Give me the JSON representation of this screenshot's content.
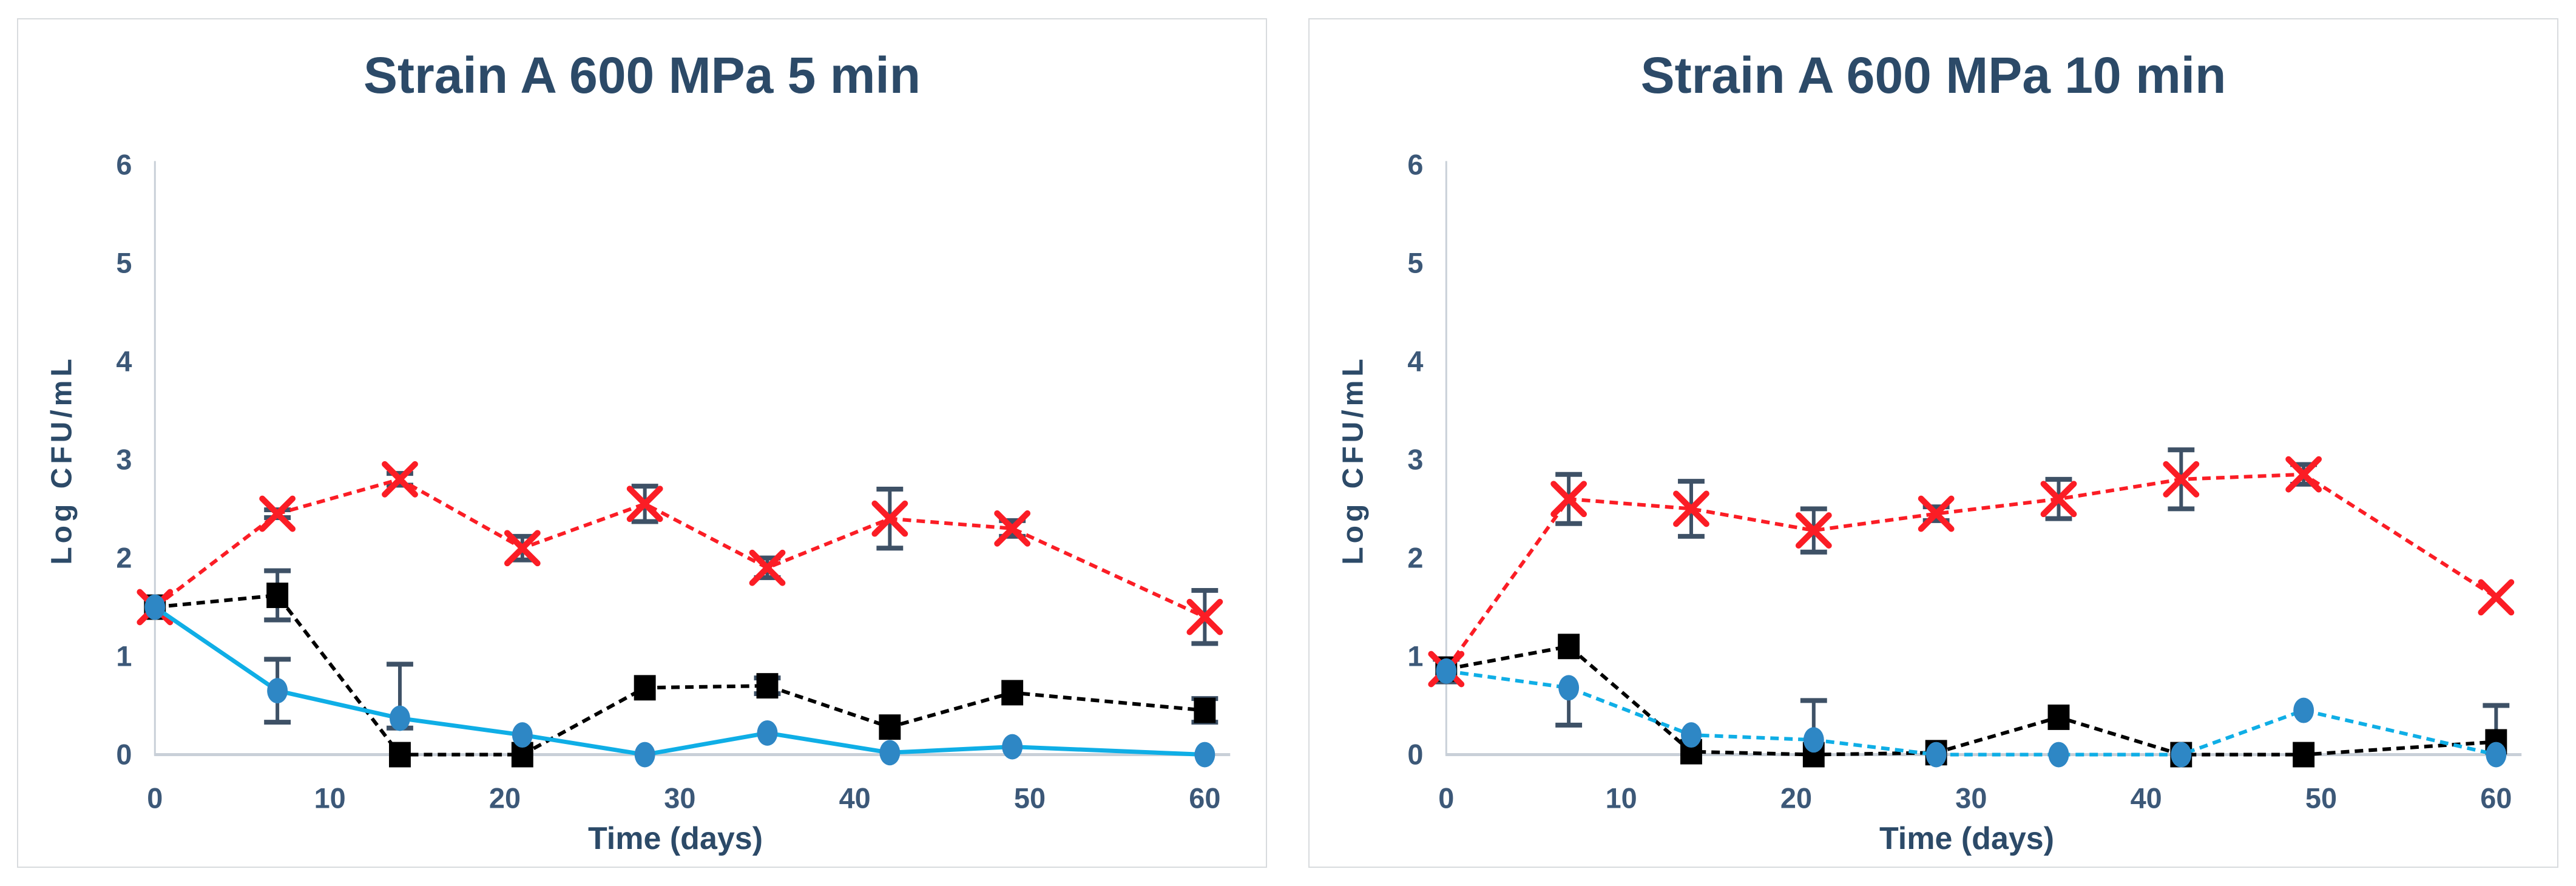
{
  "style": {
    "title_color": "#2c4a68",
    "tick_color": "#3c5878",
    "axis_line": "#c9d0d8",
    "error_bar": "#3e5166",
    "panel_border": "#d8dbde",
    "background": "#ffffff"
  },
  "chart_data": [
    {
      "type": "line",
      "title": "Strain A 600 MPa 5 min",
      "xlabel": "Time (days)",
      "ylabel": "Log CFU/mL",
      "xlim": [
        0,
        60
      ],
      "ylim": [
        0,
        6
      ],
      "x_ticks": [
        0,
        10,
        20,
        30,
        40,
        50,
        60
      ],
      "y_ticks": [
        0,
        1,
        2,
        3,
        4,
        5,
        6
      ],
      "grid": false,
      "legend": "none",
      "x": [
        0,
        7,
        14,
        21,
        28,
        35,
        42,
        49,
        60
      ],
      "series": [
        {
          "name": "black-squares",
          "marker": "square",
          "color": "#000000",
          "marker_color": "#000000",
          "line_style": "dashed",
          "values": [
            1.5,
            1.62,
            0.0,
            0.0,
            0.68,
            0.7,
            0.28,
            0.63,
            0.45
          ],
          "err_up": [
            0,
            0.25,
            0,
            0,
            0,
            0.08,
            0,
            0,
            0.12
          ],
          "err_down": [
            0,
            0.25,
            0,
            0,
            0,
            0.08,
            0,
            0,
            0.12
          ]
        },
        {
          "name": "red-x",
          "marker": "x-cross",
          "color": "#fb1d25",
          "marker_color": "#fb1d25",
          "line_style": "dashed",
          "values": [
            1.5,
            2.45,
            2.8,
            2.1,
            2.55,
            1.9,
            2.4,
            2.3,
            1.4
          ],
          "err_up": [
            0,
            0.04,
            0.06,
            0.12,
            0.18,
            0.1,
            0.3,
            0.08,
            0.27
          ],
          "err_down": [
            0,
            0.04,
            0.06,
            0.12,
            0.18,
            0.1,
            0.3,
            0.08,
            0.27
          ]
        },
        {
          "name": "blue-circles",
          "marker": "circle",
          "color": "#0faee6",
          "marker_color": "#2e87c5",
          "line_style": "solid",
          "values": [
            1.5,
            0.65,
            0.37,
            0.2,
            0.0,
            0.22,
            0.02,
            0.08,
            0.0
          ],
          "err_up": [
            0,
            0.32,
            0.55,
            0,
            0,
            0,
            0,
            0,
            0
          ],
          "err_down": [
            0,
            0.32,
            0.1,
            0,
            0,
            0,
            0,
            0,
            0
          ]
        }
      ]
    },
    {
      "type": "line",
      "title": "Strain A 600 MPa 10 min",
      "xlabel": "Time (days)",
      "ylabel": "Log CFU/mL",
      "xlim": [
        0,
        60
      ],
      "ylim": [
        0,
        6
      ],
      "x_ticks": [
        0,
        10,
        20,
        30,
        40,
        50,
        60
      ],
      "y_ticks": [
        0,
        1,
        2,
        3,
        4,
        5,
        6
      ],
      "grid": false,
      "legend": "none",
      "x": [
        0,
        7,
        14,
        21,
        28,
        35,
        42,
        49,
        60
      ],
      "series": [
        {
          "name": "black-squares",
          "marker": "square",
          "color": "#000000",
          "marker_color": "#000000",
          "line_style": "dashed",
          "values": [
            0.87,
            1.1,
            0.03,
            0.0,
            0.02,
            0.38,
            0.0,
            0.0,
            0.13
          ],
          "err_up": [
            0.1,
            0,
            0,
            0,
            0,
            0,
            0,
            0,
            0.37
          ],
          "err_down": [
            0.13,
            0,
            0,
            0,
            0,
            0,
            0,
            0,
            0
          ]
        },
        {
          "name": "red-x",
          "marker": "x-cross",
          "color": "#fb1d25",
          "marker_color": "#fb1d25",
          "line_style": "dashed",
          "values": [
            0.87,
            2.6,
            2.5,
            2.28,
            2.45,
            2.6,
            2.8,
            2.85,
            1.6
          ],
          "err_up": [
            0,
            0.25,
            0.28,
            0.22,
            0.07,
            0.2,
            0.3,
            0.1,
            0
          ],
          "err_down": [
            0,
            0.25,
            0.28,
            0.22,
            0.07,
            0.2,
            0.3,
            0.1,
            0
          ]
        },
        {
          "name": "blue-circles",
          "marker": "circle",
          "color": "#0faee6",
          "marker_color": "#2e87c5",
          "line_style": "dashed",
          "values": [
            0.85,
            0.68,
            0.2,
            0.15,
            0.0,
            0.0,
            0.0,
            0.45,
            0.0
          ],
          "err_up": [
            0,
            0,
            0,
            0.4,
            0,
            0,
            0,
            0,
            0
          ],
          "err_down": [
            0,
            0.38,
            0,
            0,
            0,
            0,
            0,
            0,
            0
          ]
        }
      ]
    }
  ]
}
